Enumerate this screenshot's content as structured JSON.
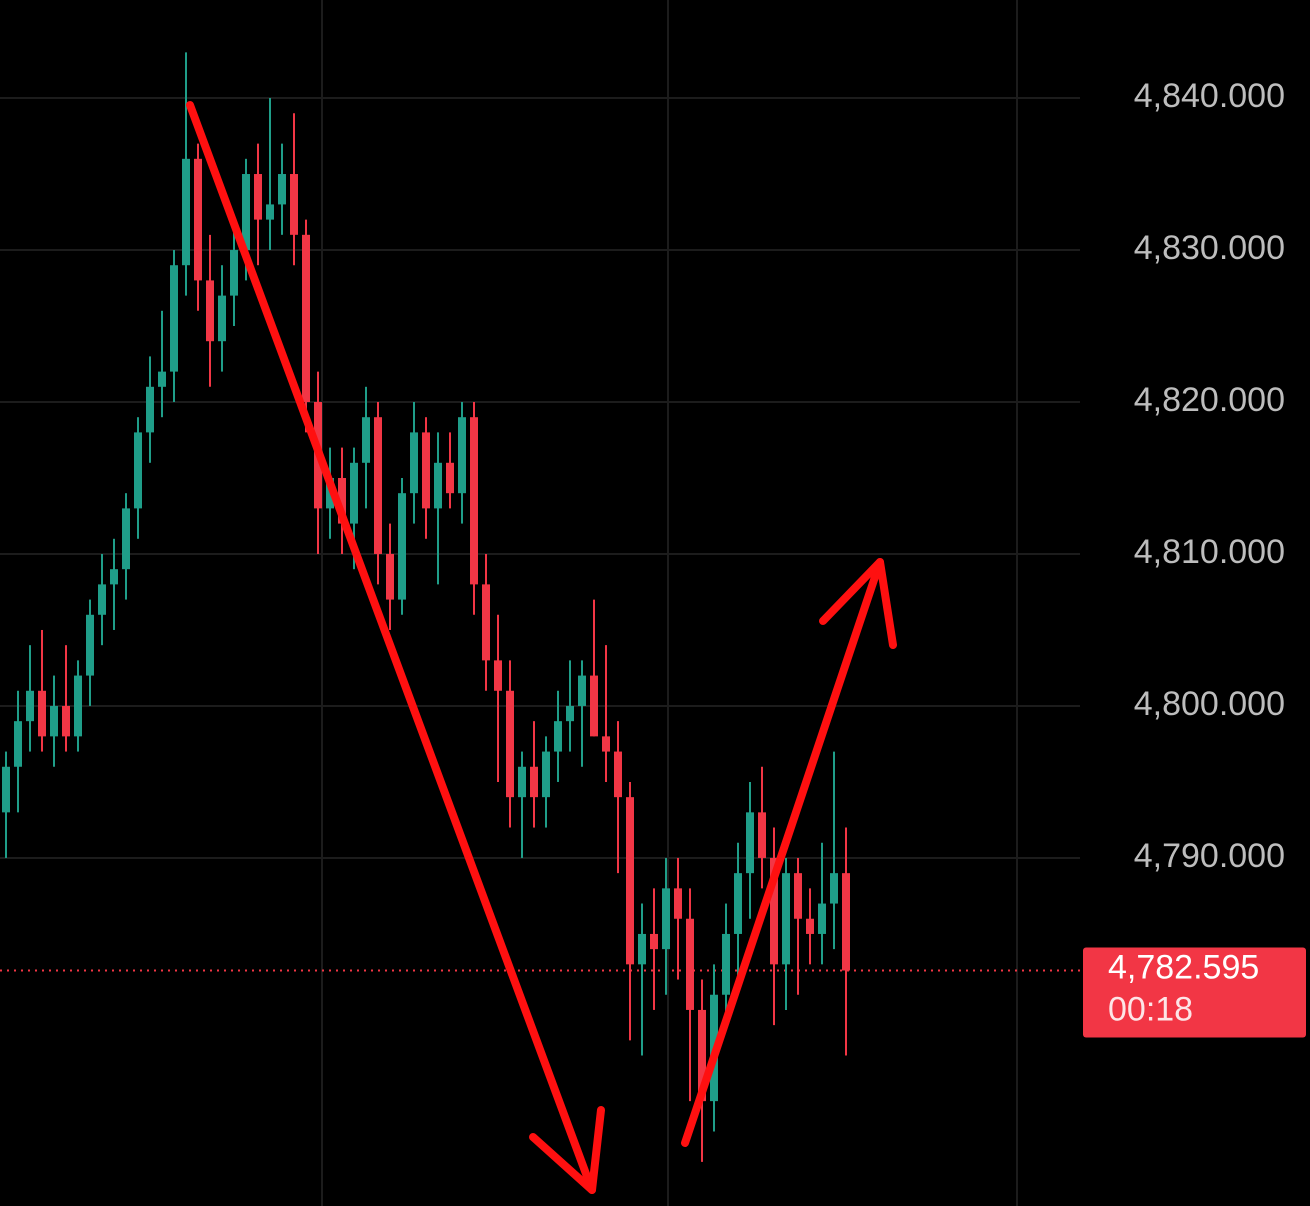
{
  "chart_data": {
    "type": "candlestick",
    "up_color": "#1f9e89",
    "down_color": "#f23645",
    "grid": true,
    "ylim": [
      4767.1,
      4846.45
    ],
    "yticks": [
      {
        "value": 4840,
        "label": "4,840.000"
      },
      {
        "value": 4830,
        "label": "4,830.000"
      },
      {
        "value": 4820,
        "label": "4,820.000"
      },
      {
        "value": 4810,
        "label": "4,810.000"
      },
      {
        "value": 4800,
        "label": "4,800.000"
      },
      {
        "value": 4790,
        "label": "4,790.000"
      }
    ],
    "last_price": {
      "value": 4782.595,
      "label": "4,782.595"
    },
    "countdown": "00:18",
    "open": [
      4793,
      4796,
      4799,
      4801,
      4798,
      4800,
      4798,
      4802,
      4806,
      4808,
      4809,
      4813,
      4818,
      4821,
      4822,
      4829,
      4836,
      4828,
      4824,
      4827,
      4830,
      4835,
      4832,
      4833,
      4835,
      4831,
      4820,
      4813,
      4815,
      4812,
      4816,
      4819,
      4810,
      4807,
      4814,
      4818,
      4813,
      4816,
      4814,
      4819,
      4808,
      4803,
      4801,
      4794,
      4796,
      4794,
      4797,
      4799,
      4800,
      4802,
      4798,
      4797,
      4794,
      4783,
      4785,
      4784,
      4788,
      4786,
      4780,
      4774,
      4781,
      4785,
      4789,
      4793,
      4790,
      4783,
      4789,
      4786,
      4785,
      4787,
      4789
    ],
    "high": [
      4797,
      4801,
      4804,
      4805,
      4802,
      4804,
      4803,
      4807,
      4810,
      4811,
      4814,
      4819,
      4823,
      4826,
      4830,
      4843,
      4837,
      4831,
      4829,
      4832,
      4836,
      4837,
      4840,
      4837,
      4839,
      4832,
      4822,
      4817,
      4817,
      4817,
      4821,
      4820,
      4812,
      4815,
      4820,
      4819,
      4818,
      4818,
      4820,
      4820,
      4810,
      4806,
      4803,
      4797,
      4799,
      4798,
      4801,
      4803,
      4803,
      4807,
      4804,
      4799,
      4795,
      4787,
      4788,
      4790,
      4790,
      4788,
      4782,
      4783,
      4787,
      4791,
      4795,
      4796,
      4792,
      4790,
      4790,
      4788,
      4791,
      4797,
      4792
    ],
    "low": [
      4790,
      4793,
      4797,
      4797,
      4796,
      4797,
      4797,
      4800,
      4804,
      4805,
      4807,
      4811,
      4816,
      4819,
      4820,
      4827,
      4826,
      4821,
      4822,
      4825,
      4828,
      4829,
      4830,
      4831,
      4829,
      4818,
      4810,
      4811,
      4810,
      4809,
      4813,
      4808,
      4805,
      4806,
      4812,
      4811,
      4808,
      4813,
      4812,
      4806,
      4801,
      4795,
      4792,
      4790,
      4792,
      4792,
      4795,
      4797,
      4796,
      4798,
      4795,
      4789,
      4778,
      4777,
      4780,
      4781,
      4782,
      4774,
      4770,
      4772,
      4779,
      4782,
      4786,
      4788,
      4779,
      4780,
      4781,
      4783,
      4783,
      4784,
      4777
    ],
    "close": [
      4796,
      4799,
      4801,
      4798,
      4800,
      4798,
      4802,
      4806,
      4808,
      4809,
      4813,
      4818,
      4821,
      4822,
      4829,
      4836,
      4828,
      4824,
      4827,
      4830,
      4835,
      4832,
      4833,
      4835,
      4831,
      4820,
      4813,
      4815,
      4812,
      4816,
      4819,
      4810,
      4807,
      4814,
      4818,
      4813,
      4816,
      4814,
      4819,
      4808,
      4803,
      4801,
      4794,
      4796,
      4794,
      4797,
      4799,
      4800,
      4802,
      4798,
      4797,
      4794,
      4783,
      4785,
      4784,
      4788,
      4786,
      4780,
      4774,
      4781,
      4785,
      4789,
      4793,
      4790,
      4783,
      4789,
      4786,
      4785,
      4787,
      4789,
      4782.595
    ]
  }
}
